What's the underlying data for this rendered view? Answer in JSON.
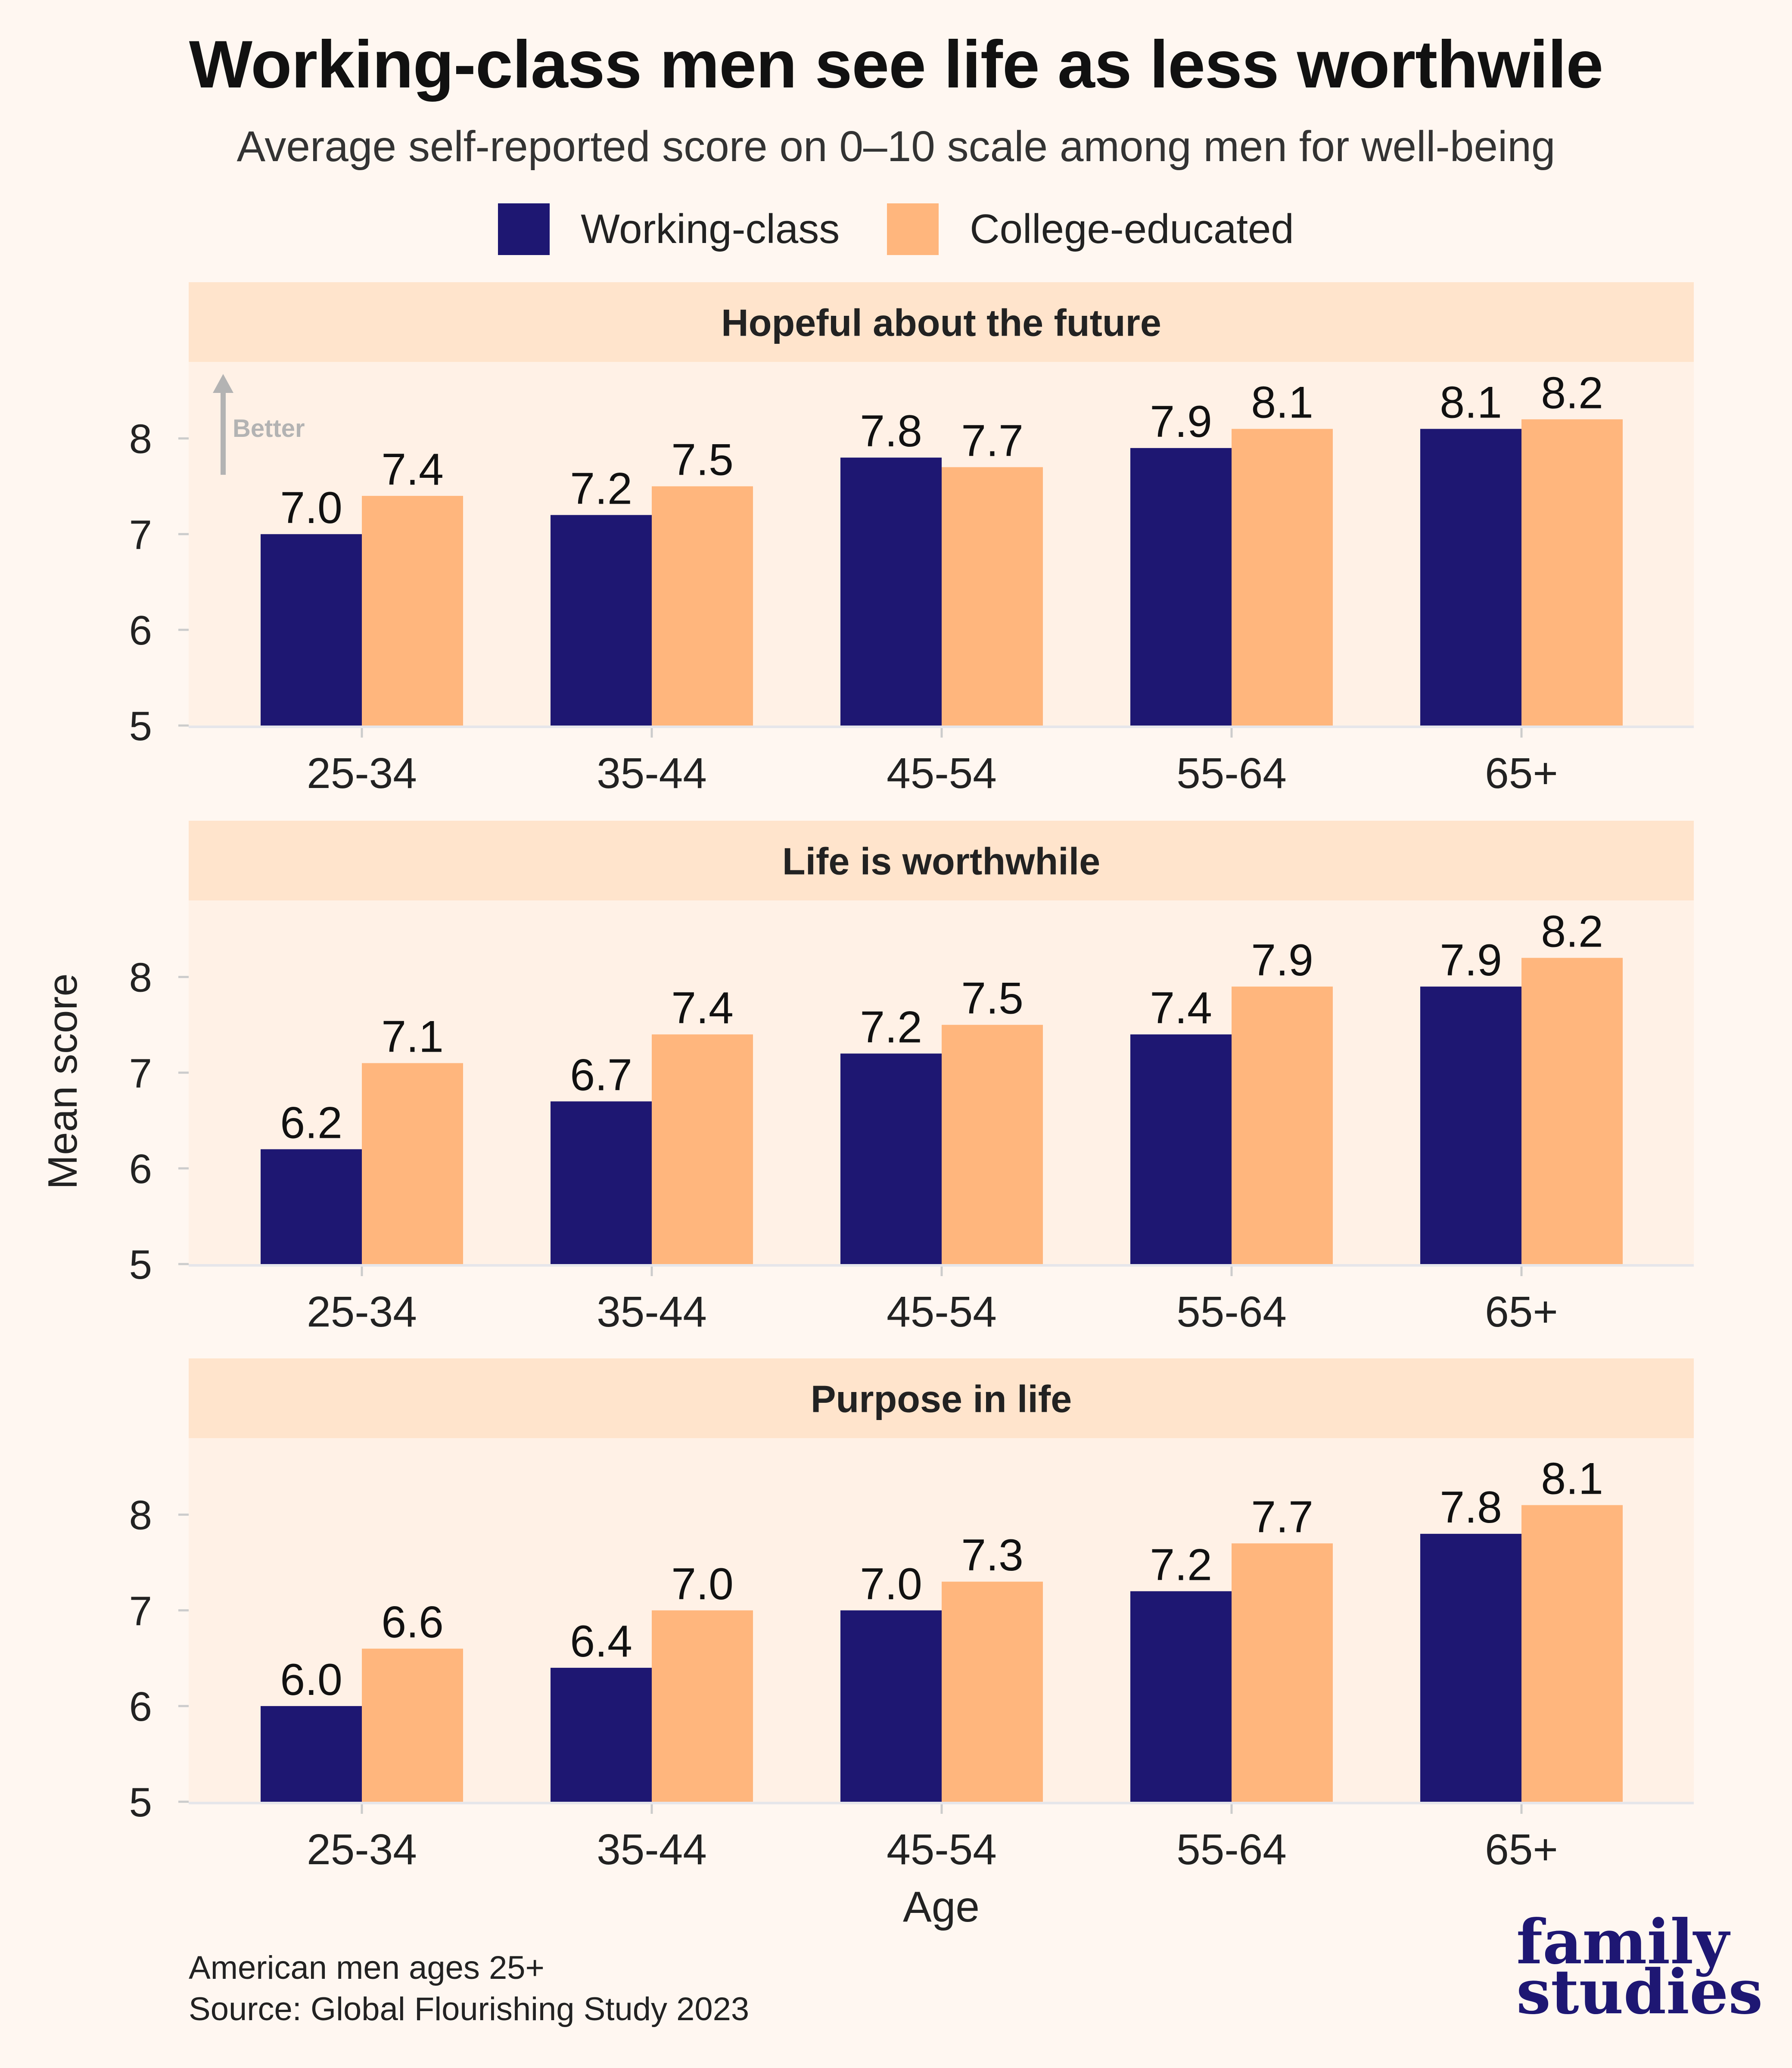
{
  "header": {
    "title": "Working-class men see life as less worthwile",
    "subtitle": "Average self-reported score on 0–10 scale among men for well-being"
  },
  "legend": {
    "items": [
      {
        "label": "Working-class",
        "color": "#1e1772"
      },
      {
        "label": "College-educated",
        "color": "#ffb67d"
      }
    ]
  },
  "axes": {
    "ylabel": "Mean score",
    "xlabel": "Age"
  },
  "annotation": {
    "label": "Better",
    "icon": "up-arrow-icon"
  },
  "chart_data": [
    {
      "type": "bar",
      "title": "Hopeful about the future",
      "categories": [
        "25-34",
        "35-44",
        "45-54",
        "55-64",
        "65+"
      ],
      "series": [
        {
          "name": "Working-class",
          "values": [
            7.0,
            7.2,
            7.8,
            7.9,
            8.1
          ],
          "labels": [
            "7.0",
            "7.2",
            "7.8",
            "7.9",
            "8.1"
          ]
        },
        {
          "name": "College-educated",
          "values": [
            7.4,
            7.5,
            7.7,
            8.1,
            8.2
          ],
          "labels": [
            "7.4",
            "7.5",
            "7.7",
            "8.1",
            "8.2"
          ]
        }
      ],
      "ylim": [
        5,
        8.8
      ],
      "yticks": [
        "5",
        "6",
        "7",
        "8"
      ],
      "grid": false
    },
    {
      "type": "bar",
      "title": "Life is worthwhile",
      "categories": [
        "25-34",
        "35-44",
        "45-54",
        "55-64",
        "65+"
      ],
      "series": [
        {
          "name": "Working-class",
          "values": [
            6.2,
            6.7,
            7.2,
            7.4,
            7.9
          ],
          "labels": [
            "6.2",
            "6.7",
            "7.2",
            "7.4",
            "7.9"
          ]
        },
        {
          "name": "College-educated",
          "values": [
            7.1,
            7.4,
            7.5,
            7.9,
            8.2
          ],
          "labels": [
            "7.1",
            "7.4",
            "7.5",
            "7.9",
            "8.2"
          ]
        }
      ],
      "ylim": [
        5,
        8.8
      ],
      "yticks": [
        "5",
        "6",
        "7",
        "8"
      ],
      "grid": false
    },
    {
      "type": "bar",
      "title": "Purpose in life",
      "categories": [
        "25-34",
        "35-44",
        "45-54",
        "55-64",
        "65+"
      ],
      "series": [
        {
          "name": "Working-class",
          "values": [
            6.0,
            6.4,
            7.0,
            7.2,
            7.8
          ],
          "labels": [
            "6.0",
            "6.4",
            "7.0",
            "7.2",
            "7.8"
          ]
        },
        {
          "name": "College-educated",
          "values": [
            6.6,
            7.0,
            7.3,
            7.7,
            8.1
          ],
          "labels": [
            "6.6",
            "7.0",
            "7.3",
            "7.7",
            "8.1"
          ]
        }
      ],
      "ylim": [
        5,
        8.8
      ],
      "yticks": [
        "5",
        "6",
        "7",
        "8"
      ],
      "grid": false
    }
  ],
  "footer": {
    "note": "American men ages 25+",
    "source": "Source: Global Flourishing Study 2023"
  },
  "logo": {
    "line1": "family",
    "line2": "studies"
  }
}
